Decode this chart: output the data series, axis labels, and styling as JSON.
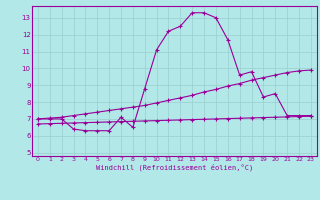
{
  "xlabel": "Windchill (Refroidissement éolien,°C)",
  "bg_color": "#b2e8e8",
  "grid_color": "#9ccfcf",
  "line_color": "#990099",
  "xlim": [
    -0.5,
    23.5
  ],
  "ylim": [
    4.8,
    13.7
  ],
  "yticks": [
    5,
    6,
    7,
    8,
    9,
    10,
    11,
    12,
    13
  ],
  "xticks": [
    0,
    1,
    2,
    3,
    4,
    5,
    6,
    7,
    8,
    9,
    10,
    11,
    12,
    13,
    14,
    15,
    16,
    17,
    18,
    19,
    20,
    21,
    22,
    23
  ],
  "line1_x": [
    0,
    1,
    2,
    3,
    4,
    5,
    6,
    7,
    8,
    9,
    10,
    11,
    12,
    13,
    14,
    15,
    16,
    17,
    18,
    19,
    20,
    21,
    22,
    23
  ],
  "line1_y": [
    7.0,
    7.0,
    7.0,
    6.4,
    6.3,
    6.3,
    6.3,
    7.1,
    6.5,
    8.8,
    11.1,
    12.2,
    12.5,
    13.3,
    13.3,
    13.0,
    11.7,
    9.6,
    9.8,
    8.3,
    8.5,
    7.2,
    7.2,
    7.2
  ],
  "line2_x": [
    0,
    1,
    2,
    3,
    4,
    5,
    6,
    7,
    8,
    9,
    10,
    11,
    12,
    13,
    14,
    15,
    16,
    17,
    18,
    19,
    20,
    21,
    22,
    23
  ],
  "line2_y": [
    7.0,
    7.05,
    7.1,
    7.2,
    7.3,
    7.4,
    7.5,
    7.6,
    7.7,
    7.8,
    7.95,
    8.1,
    8.25,
    8.4,
    8.6,
    8.75,
    8.95,
    9.1,
    9.3,
    9.45,
    9.6,
    9.75,
    9.85,
    9.9
  ],
  "line3_x": [
    0,
    1,
    2,
    3,
    4,
    5,
    6,
    7,
    8,
    9,
    10,
    11,
    12,
    13,
    14,
    15,
    16,
    17,
    18,
    19,
    20,
    21,
    22,
    23
  ],
  "line3_y": [
    6.7,
    6.72,
    6.74,
    6.76,
    6.78,
    6.8,
    6.82,
    6.84,
    6.86,
    6.88,
    6.9,
    6.92,
    6.94,
    6.96,
    6.98,
    7.0,
    7.02,
    7.04,
    7.06,
    7.08,
    7.1,
    7.12,
    7.14,
    7.16
  ]
}
